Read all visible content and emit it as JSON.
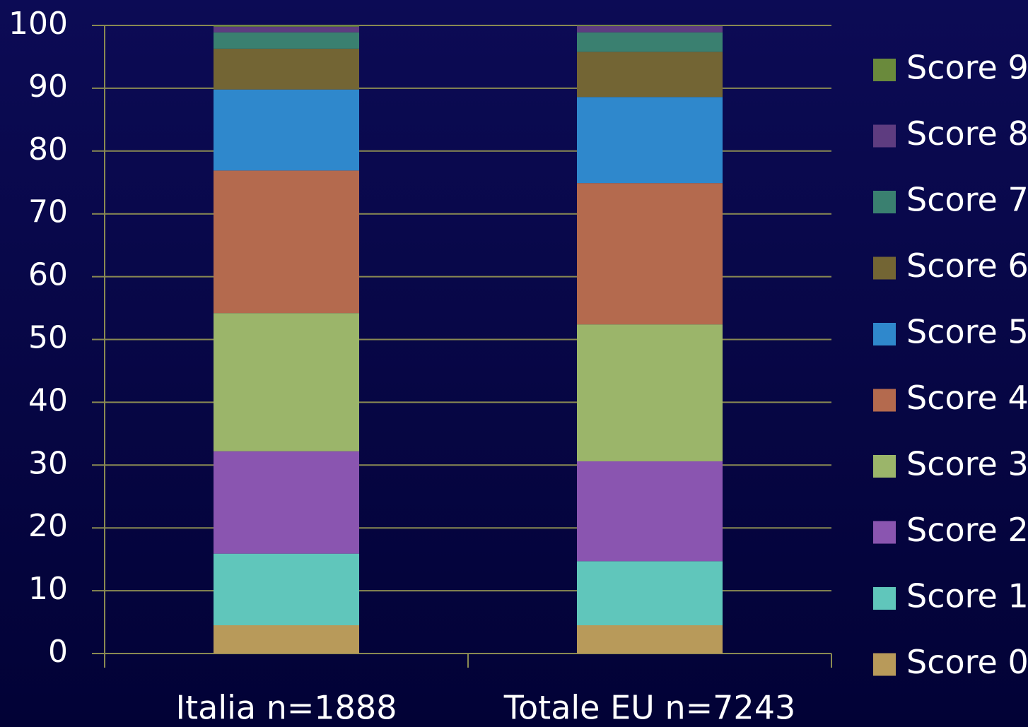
{
  "chart_data": {
    "type": "stacked_bar",
    "categories": [
      "Italia  n=1888",
      "Totale EU  n=7243"
    ],
    "series": [
      {
        "name": "Score 0",
        "color": "#b89a5a",
        "values": [
          4.5,
          4.5
        ]
      },
      {
        "name": "Score 1",
        "color": "#60c6bb",
        "values": [
          11.4,
          10.2
        ]
      },
      {
        "name": "Score 2",
        "color": "#8a55b0",
        "values": [
          16.3,
          15.9
        ]
      },
      {
        "name": "Score 3",
        "color": "#9bb56a",
        "values": [
          22.0,
          21.8
        ]
      },
      {
        "name": "Score 4",
        "color": "#b46a4e",
        "values": [
          22.7,
          22.5
        ]
      },
      {
        "name": "Score 5",
        "color": "#2f88cc",
        "values": [
          12.9,
          13.7
        ]
      },
      {
        "name": "Score 6",
        "color": "#736534",
        "values": [
          6.5,
          7.2
        ]
      },
      {
        "name": "Score 7",
        "color": "#3a8070",
        "values": [
          2.6,
          3.1
        ]
      },
      {
        "name": "Score 8",
        "color": "#5e3c80",
        "values": [
          0.9,
          1.0
        ]
      },
      {
        "name": "Score 9",
        "color": "#6a8a3c",
        "values": [
          0.2,
          0.1
        ]
      }
    ],
    "ylim": [
      0,
      100
    ],
    "yticks": [
      0,
      10,
      20,
      30,
      40,
      50,
      60,
      70,
      80,
      90,
      100
    ],
    "grid": true
  }
}
